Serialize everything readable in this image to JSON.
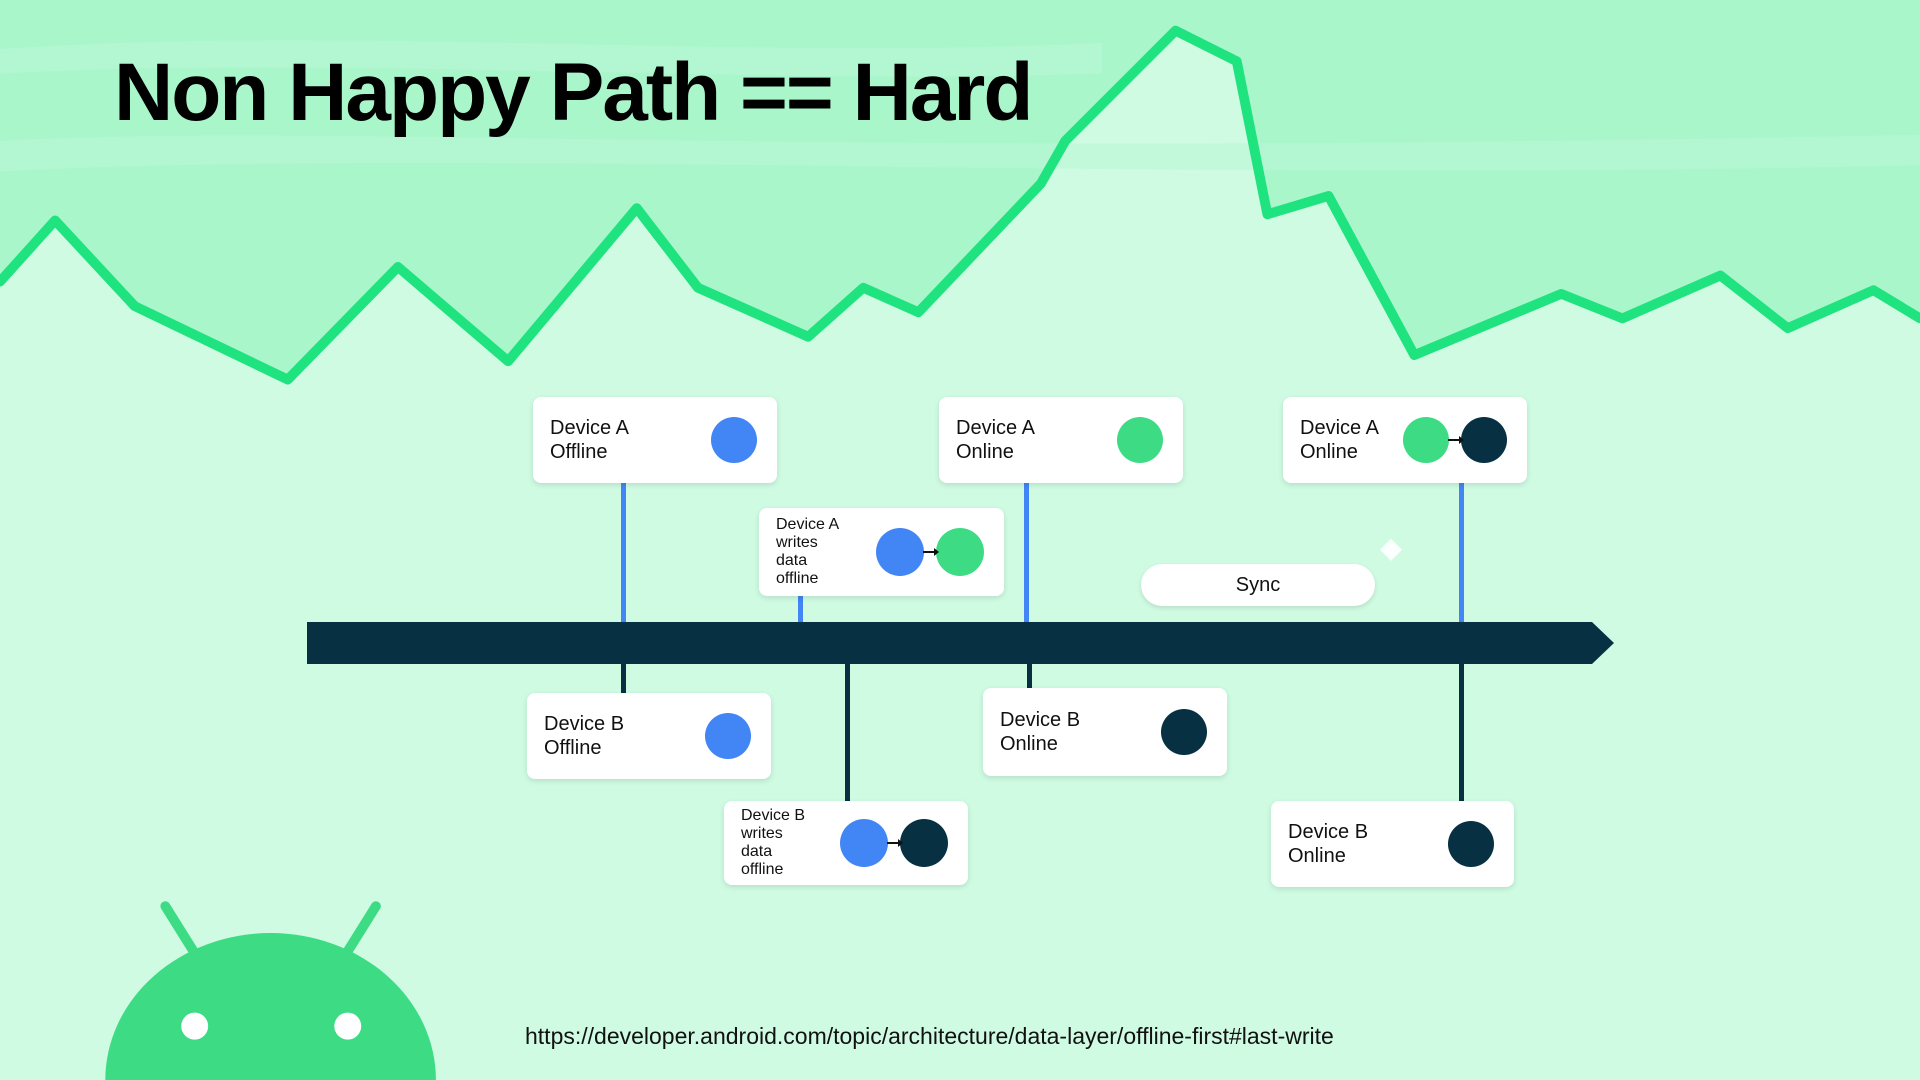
{
  "slide": {
    "title": "Non Happy Path == Hard",
    "url": "https://developer.android.com/topic/architecture/data-layer/offline-first#last-write"
  },
  "colors": {
    "offline": "#4285f4",
    "local_write": "#3ddc84",
    "remote_data": "#073042",
    "timeline": "#073042",
    "mountain_line": "#1ee37f",
    "android": "#3ddc84"
  },
  "timeline": {
    "sync_label": "Sync",
    "device_a_events": [
      {
        "label": "Device A Offline",
        "states": [
          "offline"
        ]
      },
      {
        "label": "Device A writes data offline",
        "states": [
          "offline",
          "local_write"
        ]
      },
      {
        "label": "Device A Online",
        "states": [
          "local_write"
        ]
      },
      {
        "label": "Device A Online",
        "states": [
          "local_write",
          "remote_data"
        ]
      }
    ],
    "device_b_events": [
      {
        "label": "Device B Offline",
        "states": [
          "offline"
        ]
      },
      {
        "label": "Device B writes data offline",
        "states": [
          "offline",
          "remote_data"
        ]
      },
      {
        "label": "Device B Online",
        "states": [
          "remote_data"
        ]
      },
      {
        "label": "Device B Online",
        "states": [
          "remote_data"
        ]
      }
    ]
  },
  "icons": {
    "mascot": "android-robot-icon",
    "sync_hint": "layers-icon"
  }
}
